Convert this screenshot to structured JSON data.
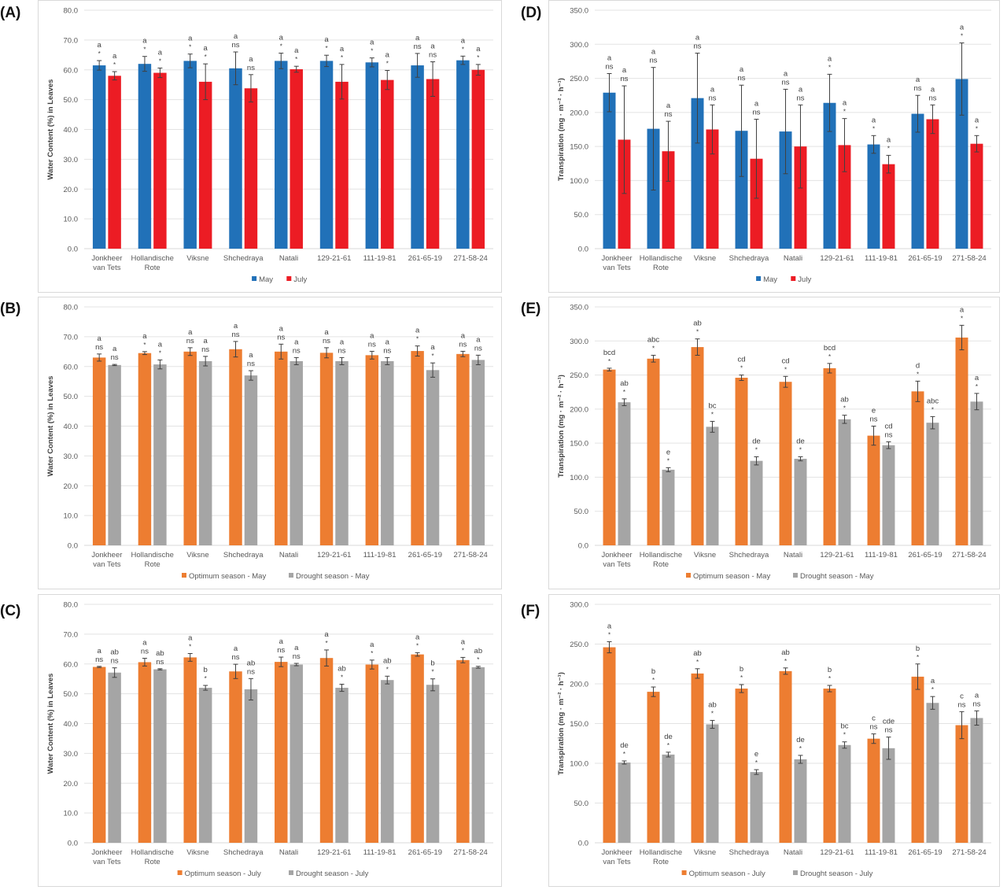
{
  "chart_data": [
    {
      "id": "A",
      "panel_label": "(A)",
      "type": "bar",
      "title": "",
      "xlabel": "",
      "ylabel": "Water Content (%) in Leaves",
      "ylim": [
        0,
        80
      ],
      "yticks": [
        "0.0",
        "10.0",
        "20.0",
        "30.0",
        "40.0",
        "50.0",
        "60.0",
        "70.0",
        "80.0"
      ],
      "grid": true,
      "legend": "bottom",
      "categories": [
        "Jonkheer\nvan Tets",
        "Hollandische\nRote",
        "Viksne",
        "Shchedraya",
        "Natali",
        "129-21-61",
        "111-19-81",
        "261-65-19",
        "271-58-24"
      ],
      "series": [
        {
          "name": "May",
          "color": "#2171b8",
          "values": [
            61.5,
            62.0,
            63.0,
            60.5,
            63.0,
            63.0,
            62.5,
            61.5,
            63.2
          ],
          "errors": [
            1.6,
            2.5,
            2.3,
            5.5,
            2.6,
            1.9,
            1.5,
            4.0,
            1.4
          ],
          "labels": [
            [
              "a",
              "*"
            ],
            [
              "a",
              "*"
            ],
            [
              "a",
              "*"
            ],
            [
              "a",
              "ns"
            ],
            [
              "a",
              "*"
            ],
            [
              "a",
              "*"
            ],
            [
              "a",
              "*"
            ],
            [
              "a",
              "ns"
            ],
            [
              "a",
              "*"
            ]
          ]
        },
        {
          "name": "July",
          "color": "#ec1c24",
          "values": [
            58.0,
            59.0,
            56.0,
            53.8,
            60.2,
            56.0,
            56.6,
            56.9,
            60.0
          ],
          "errors": [
            1.4,
            1.6,
            6.0,
            4.6,
            1.0,
            5.8,
            3.2,
            5.8,
            1.8
          ],
          "labels": [
            [
              "a",
              "*"
            ],
            [
              "a",
              "*"
            ],
            [
              "a",
              "*"
            ],
            [
              "a",
              "ns"
            ],
            [
              "a",
              "*"
            ],
            [
              "a",
              "*"
            ],
            [
              "a",
              "*"
            ],
            [
              "a",
              "ns"
            ],
            [
              "a",
              "*"
            ]
          ]
        }
      ]
    },
    {
      "id": "B",
      "panel_label": "(B)",
      "type": "bar",
      "title": "",
      "xlabel": "",
      "ylabel": "Water Content (%) in Leaves",
      "ylim": [
        0,
        80
      ],
      "yticks": [
        "0.0",
        "10.0",
        "20.0",
        "30.0",
        "40.0",
        "50.0",
        "60.0",
        "70.0",
        "80.0"
      ],
      "grid": true,
      "legend": "bottom",
      "categories": [
        "Jonkheer\nvan Tets",
        "Hollandische\nRote",
        "Viksne",
        "Shchedraya",
        "Natali",
        "129-21-61",
        "111-19-81",
        "261-65-19",
        "271-58-24"
      ],
      "series": [
        {
          "name": "Optimum season - May",
          "color": "#ed7d31",
          "values": [
            63.0,
            64.5,
            65.0,
            65.8,
            65.0,
            64.6,
            63.8,
            65.2,
            64.2
          ],
          "errors": [
            1.2,
            0.5,
            1.3,
            2.6,
            2.5,
            1.7,
            1.3,
            1.7,
            0.9
          ],
          "labels": [
            [
              "a",
              "ns"
            ],
            [
              "a",
              "*"
            ],
            [
              "a",
              "ns"
            ],
            [
              "a",
              "ns"
            ],
            [
              "a",
              "ns"
            ],
            [
              "a",
              "ns"
            ],
            [
              "a",
              "ns"
            ],
            [
              "a",
              "*"
            ],
            [
              "a",
              "ns"
            ]
          ]
        },
        {
          "name": "Drought season - May",
          "color": "#a5a5a5",
          "values": [
            60.5,
            60.7,
            61.8,
            57.0,
            61.8,
            61.8,
            61.8,
            58.8,
            62.2
          ],
          "errors": [
            0.2,
            1.5,
            1.6,
            1.6,
            1.2,
            1.2,
            1.2,
            2.4,
            1.6
          ],
          "labels": [
            [
              "a",
              "ns"
            ],
            [
              "a",
              "*"
            ],
            [
              "a",
              "ns"
            ],
            [
              "a",
              "ns"
            ],
            [
              "a",
              "ns"
            ],
            [
              "a",
              "ns"
            ],
            [
              "a",
              "ns"
            ],
            [
              "a",
              "*"
            ],
            [
              "a",
              "ns"
            ]
          ]
        }
      ]
    },
    {
      "id": "C",
      "panel_label": "(C)",
      "type": "bar",
      "title": "",
      "xlabel": "",
      "ylabel": "Water Content (%) in Leaves",
      "ylim": [
        0,
        80
      ],
      "yticks": [
        "0.0",
        "10.0",
        "20.0",
        "30.0",
        "40.0",
        "50.0",
        "60.0",
        "70.0",
        "80.0"
      ],
      "grid": true,
      "legend": "bottom",
      "categories": [
        "Jonkheer\nvan Tets",
        "Hollandische\nRote",
        "Viksne",
        "Shchedraya",
        "Natali",
        "129-21-61",
        "111-19-81",
        "261-65-19",
        "271-58-24"
      ],
      "series": [
        {
          "name": "Optimum season - July",
          "color": "#ed7d31",
          "values": [
            59.0,
            60.6,
            62.2,
            57.5,
            60.7,
            62.0,
            59.8,
            63.2,
            61.3
          ],
          "errors": [
            0.2,
            1.3,
            1.3,
            2.4,
            1.6,
            2.7,
            1.5,
            0.6,
            0.9
          ],
          "labels": [
            [
              "a",
              "ns"
            ],
            [
              "a",
              "ns"
            ],
            [
              "a",
              "*"
            ],
            [
              "a",
              "ns"
            ],
            [
              "a",
              "ns"
            ],
            [
              "a",
              "*"
            ],
            [
              "a",
              "*"
            ],
            [
              "a",
              "*"
            ],
            [
              "a",
              "*"
            ]
          ]
        },
        {
          "name": "Drought season - July",
          "color": "#a5a5a5",
          "values": [
            57.1,
            58.2,
            52.0,
            51.5,
            59.8,
            52.0,
            54.6,
            53.0,
            58.9
          ],
          "errors": [
            1.6,
            0.2,
            0.8,
            3.6,
            0.4,
            1.2,
            1.3,
            2.0,
            0.3
          ],
          "labels": [
            [
              "ab",
              "ns"
            ],
            [
              "ab",
              "ns"
            ],
            [
              "b",
              "*"
            ],
            [
              "ab",
              "ns"
            ],
            [
              "a",
              "ns"
            ],
            [
              "ab",
              "*"
            ],
            [
              "ab",
              "*"
            ],
            [
              "b",
              "*"
            ],
            [
              "ab",
              "*"
            ]
          ]
        }
      ]
    },
    {
      "id": "D",
      "panel_label": "(D)",
      "type": "bar",
      "title": "",
      "xlabel": "",
      "ylabel": "Transpiration (mg · m⁻² · h⁻¹)",
      "ylim": [
        0,
        350
      ],
      "yticks": [
        "0.0",
        "50.0",
        "100.0",
        "150.0",
        "200.0",
        "250.0",
        "300.0",
        "350.0"
      ],
      "grid": true,
      "legend": "bottom",
      "categories": [
        "Jonkheer\nvan Tets",
        "Hollandische\nRote",
        "Viksne",
        "Shchedraya",
        "Natali",
        "129-21-61",
        "111-19-81",
        "261-65-19",
        "271-58-24"
      ],
      "series": [
        {
          "name": "May",
          "color": "#2171b8",
          "values": [
            229,
            176,
            221,
            173,
            172,
            214,
            153,
            198,
            249
          ],
          "errors": [
            28,
            90,
            66,
            67,
            62,
            42,
            13,
            27,
            53
          ],
          "labels": [
            [
              "a",
              "ns"
            ],
            [
              "a",
              "ns"
            ],
            [
              "a",
              "ns"
            ],
            [
              "a",
              "ns"
            ],
            [
              "a",
              "ns"
            ],
            [
              "a",
              "*"
            ],
            [
              "a",
              "*"
            ],
            [
              "a",
              "ns"
            ],
            [
              "a",
              "*"
            ]
          ]
        },
        {
          "name": "July",
          "color": "#ec1c24",
          "values": [
            160,
            143,
            175,
            132,
            150,
            152,
            124,
            190,
            154
          ],
          "errors": [
            79,
            44,
            36,
            58,
            61,
            39,
            13,
            21,
            12
          ],
          "labels": [
            [
              "a",
              "ns"
            ],
            [
              "a",
              "ns"
            ],
            [
              "a",
              "ns"
            ],
            [
              "a",
              "ns"
            ],
            [
              "a",
              "ns"
            ],
            [
              "a",
              "*"
            ],
            [
              "a",
              "*"
            ],
            [
              "a",
              "ns"
            ],
            [
              "a",
              "*"
            ]
          ]
        }
      ]
    },
    {
      "id": "E",
      "panel_label": "(E)",
      "type": "bar",
      "title": "",
      "xlabel": "",
      "ylabel": "Transpiration (mg · m⁻² · h⁻¹)",
      "ylim": [
        0,
        350
      ],
      "yticks": [
        "0.0",
        "50.0",
        "100.0",
        "150.0",
        "200.0",
        "250.0",
        "300.0",
        "350.0"
      ],
      "grid": true,
      "legend": "bottom",
      "categories": [
        "Jonkheer\nvan Tets",
        "Hollandische\nRote",
        "Viksne",
        "Shchedraya",
        "Natali",
        "129-21-61",
        "111-19-81",
        "261-65-19",
        "271-58-24"
      ],
      "series": [
        {
          "name": "Optimum season - May",
          "color": "#ed7d31",
          "values": [
            258,
            274,
            291,
            246,
            240,
            260,
            161,
            226,
            305
          ],
          "errors": [
            2,
            5,
            12,
            4,
            8,
            7,
            14,
            15,
            18
          ],
          "labels": [
            [
              "bcd",
              "*"
            ],
            [
              "abc",
              "*"
            ],
            [
              "ab",
              "*"
            ],
            [
              "cd",
              "*"
            ],
            [
              "cd",
              "*"
            ],
            [
              "bcd",
              "*"
            ],
            [
              "e",
              "ns"
            ],
            [
              "d",
              "*"
            ],
            [
              "a",
              "*"
            ]
          ]
        },
        {
          "name": "Drought season - May",
          "color": "#a5a5a5",
          "values": [
            210,
            111,
            174,
            124,
            127,
            185,
            147,
            180,
            211
          ],
          "errors": [
            5,
            3,
            8,
            6,
            3,
            6,
            5,
            9,
            12
          ],
          "labels": [
            [
              "ab",
              "*"
            ],
            [
              "e",
              "*"
            ],
            [
              "bc",
              "*"
            ],
            [
              "de",
              "*"
            ],
            [
              "de",
              "*"
            ],
            [
              "ab",
              "*"
            ],
            [
              "cd",
              "ns"
            ],
            [
              "abc",
              "*"
            ],
            [
              "a",
              "*"
            ]
          ]
        }
      ]
    },
    {
      "id": "F",
      "panel_label": "(F)",
      "type": "bar",
      "title": "",
      "xlabel": "",
      "ylabel": "Transpiration (mg · m⁻² · h⁻¹)",
      "ylim": [
        0,
        300
      ],
      "yticks": [
        "0.0",
        "50.0",
        "100.0",
        "150.0",
        "200.0",
        "250.0",
        "300.0"
      ],
      "grid": true,
      "legend": "bottom",
      "categories": [
        "Jonkheer\nvan Tets",
        "Hollandische\nRote",
        "Viksne",
        "Shchedraya",
        "Natali",
        "129-21-61",
        "111-19-81",
        "261-65-19",
        "271-58-24"
      ],
      "series": [
        {
          "name": "Optimum season - July",
          "color": "#ed7d31",
          "values": [
            246,
            190,
            213,
            194,
            216,
            194,
            131,
            209,
            148
          ],
          "errors": [
            7,
            6,
            6,
            5,
            4,
            4,
            6,
            16,
            17
          ],
          "labels": [
            [
              "a",
              "*"
            ],
            [
              "b",
              "*"
            ],
            [
              "ab",
              "*"
            ],
            [
              "b",
              "*"
            ],
            [
              "ab",
              "*"
            ],
            [
              "b",
              "*"
            ],
            [
              "c",
              "ns"
            ],
            [
              "b",
              "*"
            ],
            [
              "c",
              "ns"
            ]
          ]
        },
        {
          "name": "Drought season - July",
          "color": "#a5a5a5",
          "values": [
            101,
            111,
            149,
            89,
            105,
            123,
            119,
            176,
            157
          ],
          "errors": [
            2,
            3,
            5,
            3,
            5,
            4,
            14,
            8,
            9
          ],
          "labels": [
            [
              "de",
              "*"
            ],
            [
              "de",
              "*"
            ],
            [
              "ab",
              "*"
            ],
            [
              "e",
              "*"
            ],
            [
              "de",
              "*"
            ],
            [
              "bc",
              "*"
            ],
            [
              "cde",
              "ns"
            ],
            [
              "a",
              "*"
            ],
            [
              "a",
              "ns"
            ]
          ]
        }
      ]
    }
  ]
}
